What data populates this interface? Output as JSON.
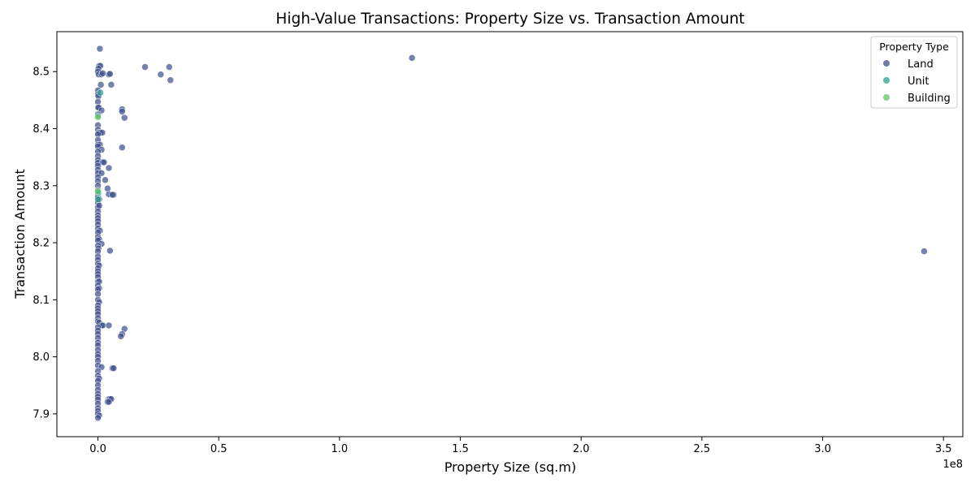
{
  "chart_data": {
    "type": "scatter",
    "title": "High-Value Transactions: Property Size vs. Transaction Amount",
    "xlabel": "Property Size (sq.m)",
    "ylabel": "Transaction Amount",
    "x_offset_label": "1e8",
    "x_scale_note": "x values in units of 1e8 sq.m",
    "xlim": [
      -0.17,
      3.58
    ],
    "ylim": [
      7.86,
      8.57
    ],
    "x_ticks": [
      0.0,
      0.5,
      1.0,
      1.5,
      2.0,
      2.5,
      3.0,
      3.5
    ],
    "x_tick_labels": [
      "0.0",
      "0.5",
      "1.0",
      "1.5",
      "2.0",
      "2.5",
      "3.0",
      "3.5"
    ],
    "y_ticks": [
      7.9,
      8.0,
      8.1,
      8.2,
      8.3,
      8.4,
      8.5
    ],
    "y_tick_labels": [
      "7.9",
      "8.0",
      "8.1",
      "8.2",
      "8.3",
      "8.4",
      "8.5"
    ],
    "grid": false,
    "legend": {
      "title": "Property Type",
      "placement": "top-right",
      "entries": [
        {
          "name": "Land",
          "color": "#3f518c"
        },
        {
          "name": "Unit",
          "color": "#2a9d8f"
        },
        {
          "name": "Building",
          "color": "#72cc6b"
        }
      ]
    },
    "series": [
      {
        "name": "Land",
        "color": "#3f518c",
        "points": [
          [
            0.008,
            8.54
          ],
          [
            0.005,
            8.51
          ],
          [
            0.01,
            8.51
          ],
          [
            0.002,
            8.505
          ],
          [
            0.0,
            8.5
          ],
          [
            0.003,
            8.495
          ],
          [
            0.015,
            8.495
          ],
          [
            0.02,
            8.497
          ],
          [
            0.045,
            8.495
          ],
          [
            0.05,
            8.496
          ],
          [
            0.055,
            8.477
          ],
          [
            0.012,
            8.477
          ],
          [
            0.195,
            8.508
          ],
          [
            0.26,
            8.495
          ],
          [
            0.295,
            8.508
          ],
          [
            0.3,
            8.485
          ],
          [
            1.3,
            8.524
          ],
          [
            0.0,
            8.467
          ],
          [
            0.0,
            8.46
          ],
          [
            0.002,
            8.457
          ],
          [
            0.0,
            8.447
          ],
          [
            0.0,
            8.437
          ],
          [
            0.003,
            8.437
          ],
          [
            0.1,
            8.434
          ],
          [
            0.1,
            8.43
          ],
          [
            0.11,
            8.419
          ],
          [
            0.015,
            8.432
          ],
          [
            0.0,
            8.425
          ],
          [
            0.0,
            8.406
          ],
          [
            0.0,
            8.398
          ],
          [
            0.003,
            8.393
          ],
          [
            0.01,
            8.393
          ],
          [
            0.018,
            8.393
          ],
          [
            0.0,
            8.39
          ],
          [
            0.0,
            8.38
          ],
          [
            0.0,
            8.372
          ],
          [
            0.008,
            8.372
          ],
          [
            0.0,
            8.369
          ],
          [
            0.015,
            8.363
          ],
          [
            0.1,
            8.367
          ],
          [
            0.0,
            8.36
          ],
          [
            0.0,
            8.352
          ],
          [
            0.0,
            8.345
          ],
          [
            0.0,
            8.34
          ],
          [
            0.02,
            8.341
          ],
          [
            0.025,
            8.341
          ],
          [
            0.0,
            8.335
          ],
          [
            0.045,
            8.331
          ],
          [
            0.0,
            8.328
          ],
          [
            0.0,
            8.322
          ],
          [
            0.015,
            8.322
          ],
          [
            0.0,
            8.315
          ],
          [
            0.03,
            8.31
          ],
          [
            0.0,
            8.308
          ],
          [
            0.0,
            8.3
          ],
          [
            0.04,
            8.295
          ],
          [
            0.0,
            8.292
          ],
          [
            0.0,
            8.286
          ],
          [
            0.045,
            8.285
          ],
          [
            0.065,
            8.284
          ],
          [
            0.06,
            8.284
          ],
          [
            0.0,
            8.28
          ],
          [
            0.005,
            8.276
          ],
          [
            0.0,
            8.27
          ],
          [
            0.0,
            8.262
          ],
          [
            0.005,
            8.265
          ],
          [
            0.0,
            8.255
          ],
          [
            0.0,
            8.248
          ],
          [
            0.0,
            8.243
          ],
          [
            0.0,
            8.238
          ],
          [
            0.0,
            8.232
          ],
          [
            0.0,
            8.225
          ],
          [
            0.008,
            8.221
          ],
          [
            0.0,
            8.218
          ],
          [
            0.0,
            8.21
          ],
          [
            0.005,
            8.206
          ],
          [
            0.0,
            8.204
          ],
          [
            0.015,
            8.198
          ],
          [
            0.0,
            8.195
          ],
          [
            0.002,
            8.19
          ],
          [
            0.05,
            8.186
          ],
          [
            0.0,
            8.185
          ],
          [
            3.42,
            8.185
          ],
          [
            0.0,
            8.176
          ],
          [
            0.0,
            8.17
          ],
          [
            0.0,
            8.163
          ],
          [
            0.005,
            8.16
          ],
          [
            0.0,
            8.155
          ],
          [
            0.0,
            8.15
          ],
          [
            0.0,
            8.145
          ],
          [
            0.0,
            8.14
          ],
          [
            0.0,
            8.132
          ],
          [
            0.005,
            8.132
          ],
          [
            0.0,
            8.125
          ],
          [
            0.005,
            8.12
          ],
          [
            0.0,
            8.118
          ],
          [
            0.0,
            8.11
          ],
          [
            0.0,
            8.1
          ],
          [
            0.005,
            8.096
          ],
          [
            0.0,
            8.09
          ],
          [
            0.0,
            8.085
          ],
          [
            0.0,
            8.08
          ],
          [
            0.0,
            8.075
          ],
          [
            0.0,
            8.068
          ],
          [
            0.0,
            8.062
          ],
          [
            0.005,
            8.06
          ],
          [
            0.015,
            8.055
          ],
          [
            0.02,
            8.055
          ],
          [
            0.045,
            8.055
          ],
          [
            0.0,
            8.052
          ],
          [
            0.0,
            8.046
          ],
          [
            0.11,
            8.049
          ],
          [
            0.1,
            8.04
          ],
          [
            0.095,
            8.036
          ],
          [
            0.0,
            8.04
          ],
          [
            0.0,
            8.033
          ],
          [
            0.0,
            8.025
          ],
          [
            0.0,
            8.02
          ],
          [
            0.0,
            8.012
          ],
          [
            0.0,
            8.005
          ],
          [
            0.0,
            8.0
          ],
          [
            0.0,
            7.993
          ],
          [
            0.0,
            7.985
          ],
          [
            0.015,
            7.982
          ],
          [
            0.06,
            7.98
          ],
          [
            0.065,
            7.98
          ],
          [
            0.0,
            7.975
          ],
          [
            0.0,
            7.967
          ],
          [
            0.005,
            7.962
          ],
          [
            0.0,
            7.958
          ],
          [
            0.0,
            7.95
          ],
          [
            0.0,
            7.942
          ],
          [
            0.0,
            7.935
          ],
          [
            0.0,
            7.93
          ],
          [
            0.045,
            7.926
          ],
          [
            0.05,
            7.926
          ],
          [
            0.055,
            7.926
          ],
          [
            0.04,
            7.921
          ],
          [
            0.045,
            7.921
          ],
          [
            0.0,
            7.925
          ],
          [
            0.0,
            7.918
          ],
          [
            0.0,
            7.91
          ],
          [
            0.0,
            7.905
          ],
          [
            0.0,
            7.9
          ],
          [
            0.005,
            7.897
          ],
          [
            0.0,
            7.893
          ]
        ]
      },
      {
        "name": "Unit",
        "color": "#2a9d8f",
        "points": [
          [
            0.01,
            8.463
          ],
          [
            0.0,
            8.422
          ],
          [
            0.0,
            8.29
          ],
          [
            0.002,
            8.288
          ],
          [
            0.0,
            8.276
          ]
        ]
      },
      {
        "name": "Building",
        "color": "#72cc6b",
        "points": [
          [
            0.0,
            8.42
          ],
          [
            0.0,
            8.29
          ]
        ]
      }
    ]
  }
}
